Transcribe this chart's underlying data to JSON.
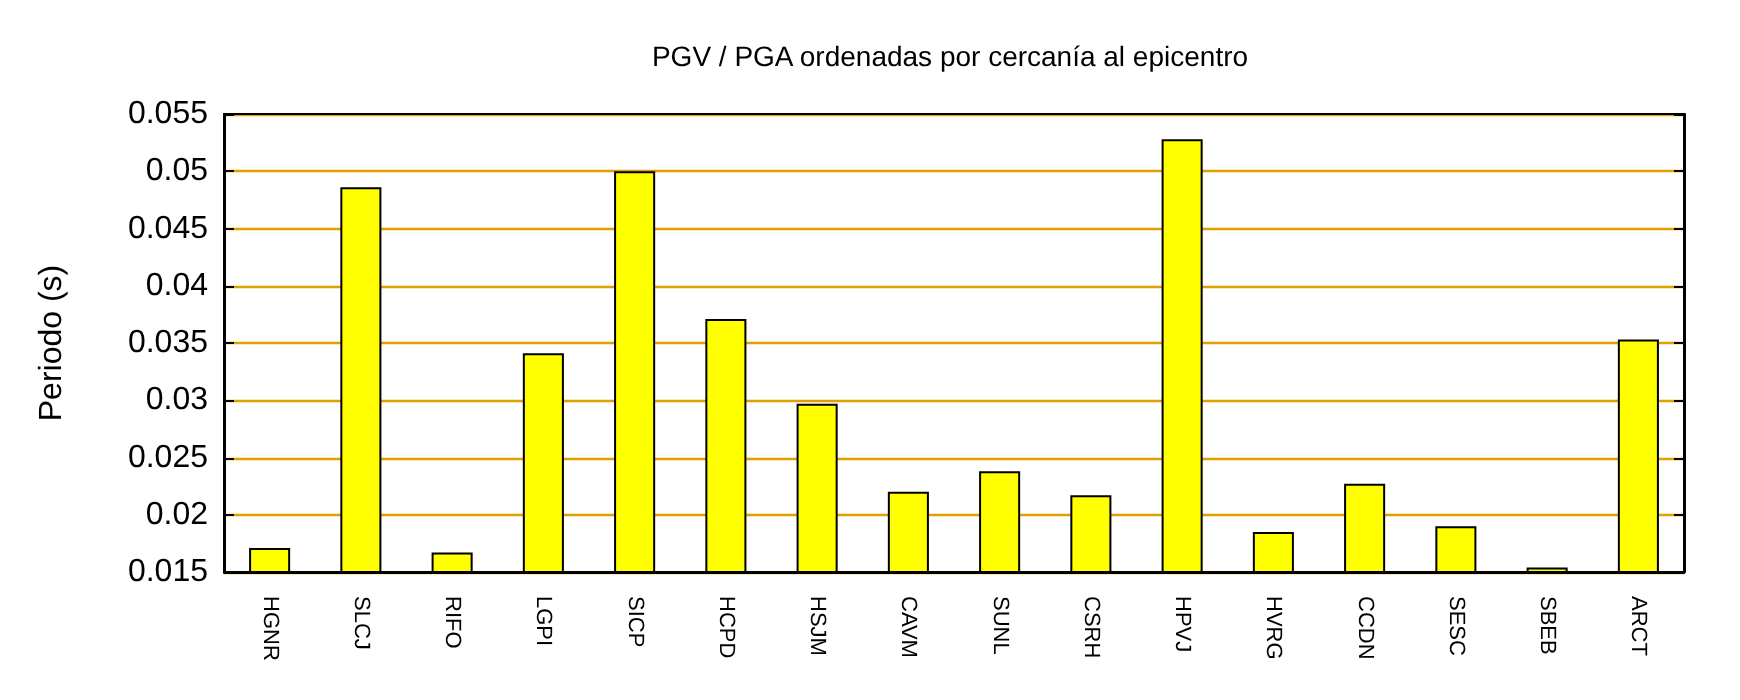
{
  "chart_data": {
    "type": "bar",
    "title": "PGV / PGA ordenadas por cercanía al epicentro",
    "ylabel": "Periodo (s)",
    "categories": [
      "HGNR",
      "SLCJ",
      "RIFO",
      "LGPI",
      "SICP",
      "HCPD",
      "HSJM",
      "CAVM",
      "SUNL",
      "CSRH",
      "HPVJ",
      "HVRG",
      "CCDN",
      "SESC",
      "SBEB",
      "ARCT"
    ],
    "values": [
      0.0171,
      0.0486,
      0.0167,
      0.0341,
      0.05,
      0.0371,
      0.0297,
      0.022,
      0.0238,
      0.0217,
      0.0528,
      0.0185,
      0.0227,
      0.019,
      0.0154,
      0.0353
    ],
    "color": "#ffff00",
    "ylim": [
      0.015,
      0.055
    ],
    "yticks": [
      0.015,
      0.02,
      0.025,
      0.03,
      0.035,
      0.04,
      0.045,
      0.05,
      0.055
    ],
    "grid": "y"
  }
}
